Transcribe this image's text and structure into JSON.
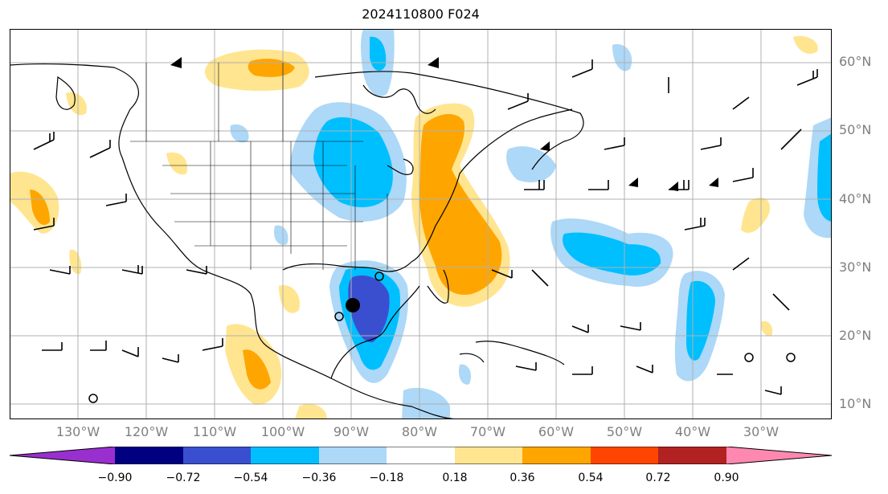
{
  "title": "2024110800 F024",
  "lat_labels": [
    "60°N",
    "50°N",
    "40°N",
    "30°N",
    "20°N",
    "10°N"
  ],
  "lon_labels": [
    "130°W",
    "120°W",
    "110°W",
    "100°W",
    "90°W",
    "80°W",
    "70°W",
    "60°W",
    "50°W",
    "40°W",
    "30°W"
  ],
  "colorbar": {
    "ticks": [
      "−0.90",
      "−0.72",
      "−0.54",
      "−0.36",
      "−0.18",
      "0.18",
      "0.36",
      "0.54",
      "0.72",
      "0.90"
    ],
    "colors": [
      "#9a2fd0",
      "#000080",
      "#3a4fcf",
      "#00bfff",
      "#add8f7",
      "#ffffff",
      "#ffe58f",
      "#ffa500",
      "#ff4500",
      "#b22222",
      "#ff88b0"
    ]
  },
  "fill_colors": {
    "pos1": "#ffe58f",
    "pos2": "#ffa500",
    "neg1": "#add8f7",
    "neg2": "#00bfff",
    "neg3": "#3a4fcf"
  }
}
